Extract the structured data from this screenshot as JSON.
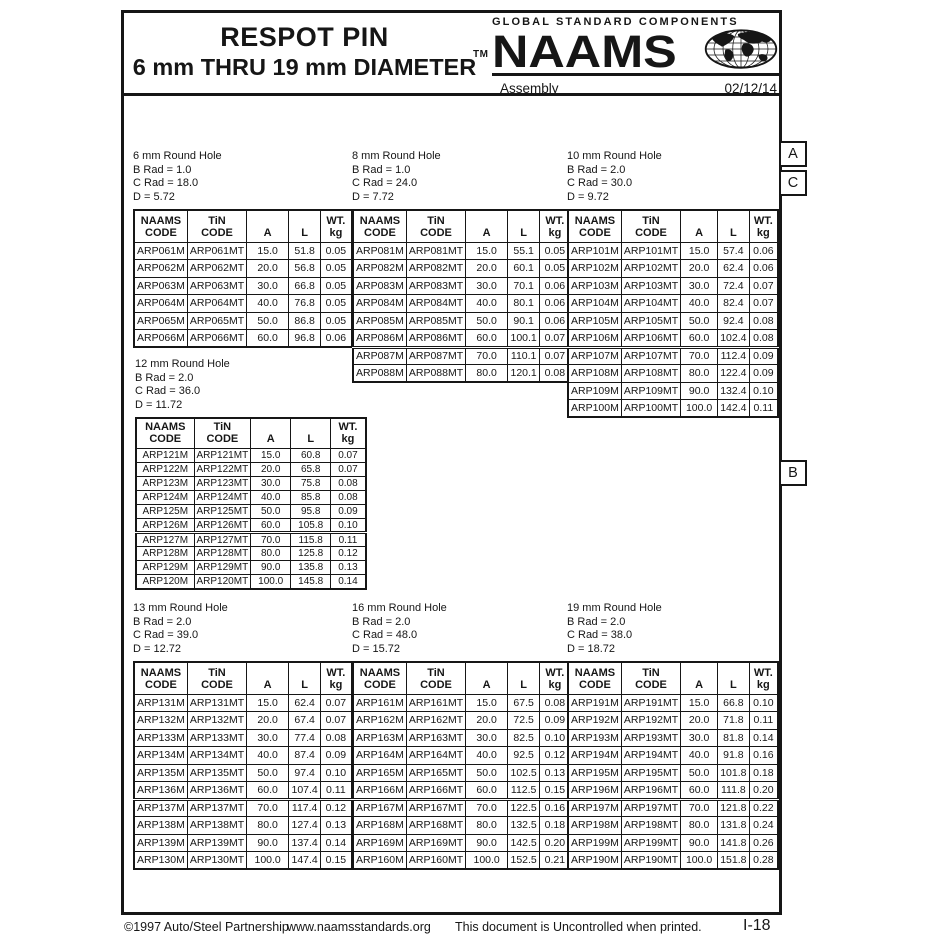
{
  "page": {
    "title_line1": "RESPOT PIN",
    "title_line2": "6 mm THRU 19 mm DIAMETER",
    "brand": {
      "tagline": "GLOBAL STANDARD COMPONENTS",
      "tm": "TM",
      "name": "NAAMS",
      "globe_icon": "globe-icon",
      "department": "Assembly",
      "date": "02/12/14"
    },
    "tabs": [
      "A",
      "C",
      "B"
    ],
    "footer": {
      "copyright": "©1997 Auto/Steel Partnership",
      "website": "www.naamsstandards.org",
      "notice": "This document is Uncontrolled when printed.",
      "page_number": "I-18"
    }
  },
  "columns": [
    "NAAMS|CODE",
    "TiN|CODE",
    "A",
    "L",
    "WT.|kg"
  ],
  "tables": [
    {
      "id": "6mm",
      "label": [
        "6 mm Round Hole",
        "B Rad = 1.0",
        "C Rad = 18.0",
        "D = 5.72"
      ],
      "rows": [
        [
          "ARP061M",
          "ARP061MT",
          "15.0",
          "51.8",
          "0.05"
        ],
        [
          "ARP062M",
          "ARP062MT",
          "20.0",
          "56.8",
          "0.05"
        ],
        [
          "ARP063M",
          "ARP063MT",
          "30.0",
          "66.8",
          "0.05"
        ],
        [
          "ARP064M",
          "ARP064MT",
          "40.0",
          "76.8",
          "0.05"
        ],
        [
          "ARP065M",
          "ARP065MT",
          "50.0",
          "86.8",
          "0.05"
        ],
        [
          "ARP066M",
          "ARP066MT",
          "60.0",
          "96.8",
          "0.06"
        ]
      ]
    },
    {
      "id": "8mm",
      "label": [
        "8 mm Round Hole",
        "B Rad = 1.0",
        "C Rad = 24.0",
        "D = 7.72"
      ],
      "rows": [
        [
          "ARP081M",
          "ARP081MT",
          "15.0",
          "55.1",
          "0.05"
        ],
        [
          "ARP082M",
          "ARP082MT",
          "20.0",
          "60.1",
          "0.05"
        ],
        [
          "ARP083M",
          "ARP083MT",
          "30.0",
          "70.1",
          "0.06"
        ],
        [
          "ARP084M",
          "ARP084MT",
          "40.0",
          "80.1",
          "0.06"
        ],
        [
          "ARP085M",
          "ARP085MT",
          "50.0",
          "90.1",
          "0.06"
        ],
        [
          "ARP086M",
          "ARP086MT",
          "60.0",
          "100.1",
          "0.07"
        ],
        [
          "ARP087M",
          "ARP087MT",
          "70.0",
          "110.1",
          "0.07"
        ],
        [
          "ARP088M",
          "ARP088MT",
          "80.0",
          "120.1",
          "0.08"
        ]
      ]
    },
    {
      "id": "10mm",
      "label": [
        "10 mm Round Hole",
        "B Rad = 2.0",
        "C Rad = 30.0",
        "D = 9.72"
      ],
      "rows": [
        [
          "ARP101M",
          "ARP101MT",
          "15.0",
          "57.4",
          "0.06"
        ],
        [
          "ARP102M",
          "ARP102MT",
          "20.0",
          "62.4",
          "0.06"
        ],
        [
          "ARP103M",
          "ARP103MT",
          "30.0",
          "72.4",
          "0.07"
        ],
        [
          "ARP104M",
          "ARP104MT",
          "40.0",
          "82.4",
          "0.07"
        ],
        [
          "ARP105M",
          "ARP105MT",
          "50.0",
          "92.4",
          "0.08"
        ],
        [
          "ARP106M",
          "ARP106MT",
          "60.0",
          "102.4",
          "0.08"
        ],
        [
          "ARP107M",
          "ARP107MT",
          "70.0",
          "112.4",
          "0.09"
        ],
        [
          "ARP108M",
          "ARP108MT",
          "80.0",
          "122.4",
          "0.09"
        ],
        [
          "ARP109M",
          "ARP109MT",
          "90.0",
          "132.4",
          "0.10"
        ],
        [
          "ARP100M",
          "ARP100MT",
          "100.0",
          "142.4",
          "0.11"
        ]
      ]
    },
    {
      "id": "12mm",
      "label": [
        "12 mm Round Hole",
        "B Rad = 2.0",
        "C Rad = 36.0",
        "D = 11.72"
      ],
      "rows": [
        [
          "ARP121M",
          "ARP121MT",
          "15.0",
          "60.8",
          "0.07"
        ],
        [
          "ARP122M",
          "ARP122MT",
          "20.0",
          "65.8",
          "0.07"
        ],
        [
          "ARP123M",
          "ARP123MT",
          "30.0",
          "75.8",
          "0.08"
        ],
        [
          "ARP124M",
          "ARP124MT",
          "40.0",
          "85.8",
          "0.08"
        ],
        [
          "ARP125M",
          "ARP125MT",
          "50.0",
          "95.8",
          "0.09"
        ],
        [
          "ARP126M",
          "ARP126MT",
          "60.0",
          "105.8",
          "0.10"
        ],
        [
          "ARP127M",
          "ARP127MT",
          "70.0",
          "115.8",
          "0.11"
        ],
        [
          "ARP128M",
          "ARP128MT",
          "80.0",
          "125.8",
          "0.12"
        ],
        [
          "ARP129M",
          "ARP129MT",
          "90.0",
          "135.8",
          "0.13"
        ],
        [
          "ARP120M",
          "ARP120MT",
          "100.0",
          "145.8",
          "0.14"
        ]
      ]
    },
    {
      "id": "13mm",
      "label": [
        "13 mm Round Hole",
        "B Rad = 2.0",
        "C Rad = 39.0",
        "D = 12.72"
      ],
      "rows": [
        [
          "ARP131M",
          "ARP131MT",
          "15.0",
          "62.4",
          "0.07"
        ],
        [
          "ARP132M",
          "ARP132MT",
          "20.0",
          "67.4",
          "0.07"
        ],
        [
          "ARP133M",
          "ARP133MT",
          "30.0",
          "77.4",
          "0.08"
        ],
        [
          "ARP134M",
          "ARP134MT",
          "40.0",
          "87.4",
          "0.09"
        ],
        [
          "ARP135M",
          "ARP135MT",
          "50.0",
          "97.4",
          "0.10"
        ],
        [
          "ARP136M",
          "ARP136MT",
          "60.0",
          "107.4",
          "0.11"
        ],
        [
          "ARP137M",
          "ARP137MT",
          "70.0",
          "117.4",
          "0.12"
        ],
        [
          "ARP138M",
          "ARP138MT",
          "80.0",
          "127.4",
          "0.13"
        ],
        [
          "ARP139M",
          "ARP139MT",
          "90.0",
          "137.4",
          "0.14"
        ],
        [
          "ARP130M",
          "ARP130MT",
          "100.0",
          "147.4",
          "0.15"
        ]
      ]
    },
    {
      "id": "16mm",
      "label": [
        "16 mm Round Hole",
        "B Rad = 2.0",
        "C Rad = 48.0",
        "D = 15.72"
      ],
      "rows": [
        [
          "ARP161M",
          "ARP161MT",
          "15.0",
          "67.5",
          "0.08"
        ],
        [
          "ARP162M",
          "ARP162MT",
          "20.0",
          "72.5",
          "0.09"
        ],
        [
          "ARP163M",
          "ARP163MT",
          "30.0",
          "82.5",
          "0.10"
        ],
        [
          "ARP164M",
          "ARP164MT",
          "40.0",
          "92.5",
          "0.12"
        ],
        [
          "ARP165M",
          "ARP165MT",
          "50.0",
          "102.5",
          "0.13"
        ],
        [
          "ARP166M",
          "ARP166MT",
          "60.0",
          "112.5",
          "0.15"
        ],
        [
          "ARP167M",
          "ARP167MT",
          "70.0",
          "122.5",
          "0.16"
        ],
        [
          "ARP168M",
          "ARP168MT",
          "80.0",
          "132.5",
          "0.18"
        ],
        [
          "ARP169M",
          "ARP169MT",
          "90.0",
          "142.5",
          "0.20"
        ],
        [
          "ARP160M",
          "ARP160MT",
          "100.0",
          "152.5",
          "0.21"
        ]
      ]
    },
    {
      "id": "19mm",
      "label": [
        "19 mm Round Hole",
        "B Rad = 2.0",
        "C Rad = 38.0",
        "D = 18.72"
      ],
      "rows": [
        [
          "ARP191M",
          "ARP191MT",
          "15.0",
          "66.8",
          "0.10"
        ],
        [
          "ARP192M",
          "ARP192MT",
          "20.0",
          "71.8",
          "0.11"
        ],
        [
          "ARP193M",
          "ARP193MT",
          "30.0",
          "81.8",
          "0.14"
        ],
        [
          "ARP194M",
          "ARP194MT",
          "40.0",
          "91.8",
          "0.16"
        ],
        [
          "ARP195M",
          "ARP195MT",
          "50.0",
          "101.8",
          "0.18"
        ],
        [
          "ARP196M",
          "ARP196MT",
          "60.0",
          "111.8",
          "0.20"
        ],
        [
          "ARP197M",
          "ARP197MT",
          "70.0",
          "121.8",
          "0.22"
        ],
        [
          "ARP198M",
          "ARP198MT",
          "80.0",
          "131.8",
          "0.24"
        ],
        [
          "ARP199M",
          "ARP199MT",
          "90.0",
          "141.8",
          "0.26"
        ],
        [
          "ARP190M",
          "ARP190MT",
          "100.0",
          "151.8",
          "0.28"
        ]
      ]
    }
  ]
}
